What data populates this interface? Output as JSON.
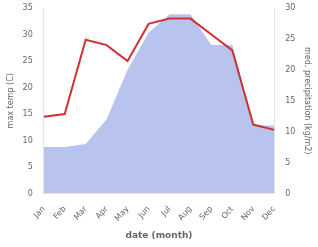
{
  "chart_data": {
    "type": "line",
    "xlabel": "date (month)",
    "ylabel": "max temp (C)",
    "y2label": "med. precipitation (kg/m2)",
    "categories": [
      "Jan",
      "Feb",
      "Mar",
      "Apr",
      "May",
      "Jun",
      "Jul",
      "Aug",
      "Sep",
      "Oct",
      "Nov",
      "Dec"
    ],
    "series": [
      {
        "color": "#cc3333",
        "values": [
          14.5,
          15.0,
          29.0,
          28.0,
          25.0,
          32.0,
          33.0,
          33.0,
          30.0,
          27.0,
          13.0,
          12.0
        ]
      },
      {
        "type": "area",
        "axis": "y2",
        "color": "#b8c4ee",
        "values": [
          7.5,
          7.5,
          8.0,
          12.0,
          20.0,
          26.0,
          29.0,
          29.0,
          24.0,
          24.0,
          11.0,
          11.0
        ]
      }
    ],
    "ylim": [
      0,
      35
    ],
    "yticks": [
      0,
      5,
      10,
      15,
      20,
      25,
      30,
      35
    ],
    "y2lim": [
      0,
      30
    ],
    "y2ticks": [
      0,
      5,
      10,
      15,
      20,
      25,
      30
    ],
    "grid": false
  }
}
